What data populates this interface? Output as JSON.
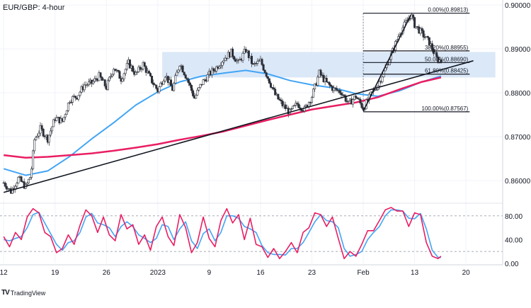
{
  "chart_data": {
    "type": "candlestick",
    "title": "EUR/GBP: 4-hour",
    "price_axis": {
      "min": 0.855,
      "max": 0.9005,
      "ticks": [
        0.86,
        0.87,
        0.88,
        0.89,
        0.9
      ],
      "tick_labels": [
        "0.86000",
        "0.87000",
        "0.88000",
        "0.89000",
        "0.90000"
      ]
    },
    "x_axis": {
      "ticks": [
        0,
        7,
        14,
        21,
        28,
        35,
        42,
        49,
        56,
        63
      ],
      "tick_labels": [
        "12",
        "19",
        "26",
        "2023",
        "9",
        "16",
        "23",
        "Feb",
        "13",
        "20"
      ],
      "range": [
        -0.5,
        68
      ]
    },
    "price_anchors": [
      [
        0,
        0.8595
      ],
      [
        1,
        0.8575
      ],
      [
        2,
        0.8605
      ],
      [
        3,
        0.8585
      ],
      [
        3.7,
        0.8612
      ],
      [
        4.2,
        0.8693
      ],
      [
        5,
        0.8718
      ],
      [
        6,
        0.8695
      ],
      [
        7,
        0.8742
      ],
      [
        8,
        0.8735
      ],
      [
        9,
        0.8785
      ],
      [
        10,
        0.8792
      ],
      [
        11,
        0.8818
      ],
      [
        12,
        0.8822
      ],
      [
        13,
        0.8838
      ],
      [
        14,
        0.8812
      ],
      [
        15,
        0.8858
      ],
      [
        16,
        0.8832
      ],
      [
        17,
        0.8868
      ],
      [
        18,
        0.8842
      ],
      [
        19,
        0.8865
      ],
      [
        20,
        0.8832
      ],
      [
        21,
        0.8805
      ],
      [
        22,
        0.8842
      ],
      [
        23,
        0.8808
      ],
      [
        24,
        0.8868
      ],
      [
        25,
        0.8832
      ],
      [
        26,
        0.8788
      ],
      [
        27,
        0.8822
      ],
      [
        28,
        0.8842
      ],
      [
        29,
        0.8858
      ],
      [
        30,
        0.8878
      ],
      [
        31,
        0.8892
      ],
      [
        32,
        0.8868
      ],
      [
        33,
        0.8898
      ],
      [
        34,
        0.8862
      ],
      [
        35,
        0.8872
      ],
      [
        36,
        0.8835
      ],
      [
        37,
        0.8795
      ],
      [
        38,
        0.8772
      ],
      [
        39,
        0.8755
      ],
      [
        40,
        0.8775
      ],
      [
        41,
        0.8762
      ],
      [
        42,
        0.8792
      ],
      [
        43,
        0.8845
      ],
      [
        44,
        0.8822
      ],
      [
        45,
        0.8808
      ],
      [
        46,
        0.8802
      ],
      [
        47,
        0.8775
      ],
      [
        48,
        0.8792
      ],
      [
        49,
        0.8765
      ],
      [
        50,
        0.8795
      ],
      [
        51,
        0.8818
      ],
      [
        52,
        0.8855
      ],
      [
        53,
        0.8895
      ],
      [
        54,
        0.8938
      ],
      [
        55,
        0.8965
      ],
      [
        55.5,
        0.8978
      ],
      [
        56,
        0.8955
      ],
      [
        57,
        0.8935
      ],
      [
        58,
        0.8915
      ],
      [
        59,
        0.8878
      ],
      [
        59.6,
        0.8872
      ]
    ],
    "ma_fast": {
      "color": "#42a5f5",
      "points": [
        [
          0,
          0.8627
        ],
        [
          3,
          0.8612
        ],
        [
          6,
          0.8622
        ],
        [
          9,
          0.8655
        ],
        [
          12,
          0.8695
        ],
        [
          15,
          0.8732
        ],
        [
          18,
          0.8772
        ],
        [
          21,
          0.8802
        ],
        [
          24,
          0.8825
        ],
        [
          27,
          0.8838
        ],
        [
          30,
          0.8845
        ],
        [
          33,
          0.8851
        ],
        [
          36,
          0.8843
        ],
        [
          39,
          0.8828
        ],
        [
          42,
          0.8818
        ],
        [
          45,
          0.8811
        ],
        [
          48,
          0.8798
        ],
        [
          51,
          0.8792
        ],
        [
          54,
          0.8805
        ],
        [
          57,
          0.8825
        ],
        [
          59.6,
          0.8838
        ]
      ]
    },
    "ma_slow": {
      "color": "#e91e63",
      "points": [
        [
          0,
          0.8658
        ],
        [
          3,
          0.8652
        ],
        [
          6,
          0.8654
        ],
        [
          9,
          0.8658
        ],
        [
          12,
          0.8662
        ],
        [
          15,
          0.8668
        ],
        [
          18,
          0.8675
        ],
        [
          21,
          0.8683
        ],
        [
          24,
          0.8693
        ],
        [
          27,
          0.8702
        ],
        [
          30,
          0.8712
        ],
        [
          33,
          0.8725
        ],
        [
          36,
          0.8738
        ],
        [
          39,
          0.875
        ],
        [
          42,
          0.8762
        ],
        [
          45,
          0.877
        ],
        [
          48,
          0.8778
        ],
        [
          51,
          0.879
        ],
        [
          54,
          0.8808
        ],
        [
          57,
          0.8825
        ],
        [
          59.6,
          0.8835
        ]
      ]
    },
    "trendlines": [
      {
        "from": [
          0,
          0.8573
        ],
        "to": [
          64,
          0.8873
        ]
      },
      {
        "from": [
          49,
          0.8758
        ],
        "to": [
          55.5,
          0.8978
        ]
      }
    ],
    "zone": {
      "x_from": 21.6,
      "x_to": 67,
      "y_from": 0.8835,
      "y_to": 0.8893,
      "color": "#dbe8f8"
    },
    "fib_retracement": {
      "x_from": 49,
      "x_to": 63.5,
      "levels": [
        {
          "label": "0.00%(0.89813)",
          "price": 0.89813
        },
        {
          "label": "38.20%(0.88955)",
          "price": 0.88955
        },
        {
          "label": "50.00%(0.88690)",
          "price": 0.8869
        },
        {
          "label": "61.80%(0.88425)",
          "price": 0.88425
        },
        {
          "label": "100.00%(0.87567)",
          "price": 0.87567
        }
      ]
    },
    "oscillator": {
      "axis": {
        "min": 0,
        "max": 100,
        "ticks": [
          0,
          40,
          80
        ],
        "tick_labels": [
          "0.00",
          "40.00",
          "80.00"
        ],
        "guides": [
          20,
          80
        ]
      },
      "k_color": "#e91e63",
      "d_color": "#42a5f5",
      "k_points": [
        [
          0,
          45
        ],
        [
          0.8,
          28
        ],
        [
          1.6,
          52
        ],
        [
          2.4,
          40
        ],
        [
          3.2,
          78
        ],
        [
          4,
          92
        ],
        [
          4.8,
          85
        ],
        [
          5.6,
          52
        ],
        [
          6.4,
          45
        ],
        [
          7.2,
          18
        ],
        [
          8,
          25
        ],
        [
          8.8,
          48
        ],
        [
          9.6,
          32
        ],
        [
          10.4,
          64
        ],
        [
          11.2,
          90
        ],
        [
          12,
          80
        ],
        [
          12.8,
          52
        ],
        [
          13.6,
          78
        ],
        [
          14.4,
          48
        ],
        [
          15.2,
          38
        ],
        [
          16,
          82
        ],
        [
          16.8,
          58
        ],
        [
          17.6,
          65
        ],
        [
          18.4,
          32
        ],
        [
          19.2,
          48
        ],
        [
          20,
          22
        ],
        [
          20.8,
          62
        ],
        [
          21.6,
          78
        ],
        [
          22.4,
          45
        ],
        [
          23.2,
          30
        ],
        [
          24,
          82
        ],
        [
          24.8,
          60
        ],
        [
          25.6,
          18
        ],
        [
          26.4,
          35
        ],
        [
          27.2,
          78
        ],
        [
          28,
          42
        ],
        [
          28.8,
          28
        ],
        [
          29.6,
          72
        ],
        [
          30.4,
          92
        ],
        [
          31.2,
          68
        ],
        [
          32,
          82
        ],
        [
          32.8,
          40
        ],
        [
          33.6,
          76
        ],
        [
          34.4,
          32
        ],
        [
          35.2,
          28
        ],
        [
          36,
          10
        ],
        [
          36.8,
          25
        ],
        [
          37.6,
          8
        ],
        [
          38.4,
          20
        ],
        [
          39.2,
          35
        ],
        [
          40,
          18
        ],
        [
          40.8,
          52
        ],
        [
          41.6,
          60
        ],
        [
          42.4,
          85
        ],
        [
          43.2,
          82
        ],
        [
          44,
          62
        ],
        [
          44.8,
          78
        ],
        [
          45.6,
          42
        ],
        [
          46.4,
          8
        ],
        [
          47.2,
          20
        ],
        [
          48,
          12
        ],
        [
          48.8,
          32
        ],
        [
          49.6,
          55
        ],
        [
          50.4,
          55
        ],
        [
          51.2,
          72
        ],
        [
          52,
          90
        ],
        [
          52.8,
          94
        ],
        [
          53.6,
          88
        ],
        [
          54.4,
          88
        ],
        [
          55.2,
          62
        ],
        [
          56,
          85
        ],
        [
          56.8,
          82
        ],
        [
          57.6,
          35
        ],
        [
          58.4,
          12
        ],
        [
          59.2,
          8
        ],
        [
          59.6,
          12
        ]
      ],
      "d_points": [
        [
          0,
          40
        ],
        [
          0.8,
          38
        ],
        [
          1.6,
          42
        ],
        [
          2.4,
          45
        ],
        [
          3.2,
          60
        ],
        [
          4,
          82
        ],
        [
          4.8,
          86
        ],
        [
          5.6,
          68
        ],
        [
          6.4,
          50
        ],
        [
          7.2,
          32
        ],
        [
          8,
          22
        ],
        [
          8.8,
          35
        ],
        [
          9.6,
          38
        ],
        [
          10.4,
          52
        ],
        [
          11.2,
          78
        ],
        [
          12,
          84
        ],
        [
          12.8,
          68
        ],
        [
          13.6,
          65
        ],
        [
          14.4,
          60
        ],
        [
          15.2,
          45
        ],
        [
          16,
          62
        ],
        [
          16.8,
          70
        ],
        [
          17.6,
          62
        ],
        [
          18.4,
          48
        ],
        [
          19.2,
          42
        ],
        [
          20,
          35
        ],
        [
          20.8,
          42
        ],
        [
          21.6,
          65
        ],
        [
          22.4,
          62
        ],
        [
          23.2,
          40
        ],
        [
          24,
          58
        ],
        [
          24.8,
          70
        ],
        [
          25.6,
          38
        ],
        [
          26.4,
          25
        ],
        [
          27.2,
          50
        ],
        [
          28,
          58
        ],
        [
          28.8,
          38
        ],
        [
          29.6,
          52
        ],
        [
          30.4,
          80
        ],
        [
          31.2,
          80
        ],
        [
          32,
          76
        ],
        [
          32.8,
          62
        ],
        [
          33.6,
          58
        ],
        [
          34.4,
          52
        ],
        [
          35.2,
          30
        ],
        [
          36,
          18
        ],
        [
          36.8,
          15
        ],
        [
          37.6,
          15
        ],
        [
          38.4,
          14
        ],
        [
          39.2,
          25
        ],
        [
          40,
          25
        ],
        [
          40.8,
          35
        ],
        [
          41.6,
          52
        ],
        [
          42.4,
          70
        ],
        [
          43.2,
          82
        ],
        [
          44,
          72
        ],
        [
          44.8,
          70
        ],
        [
          45.6,
          60
        ],
        [
          46.4,
          25
        ],
        [
          47.2,
          12
        ],
        [
          48,
          15
        ],
        [
          48.8,
          20
        ],
        [
          49.6,
          40
        ],
        [
          50.4,
          52
        ],
        [
          51.2,
          62
        ],
        [
          52,
          80
        ],
        [
          52.8,
          90
        ],
        [
          53.6,
          90
        ],
        [
          54.4,
          88
        ],
        [
          55.2,
          76
        ],
        [
          56,
          75
        ],
        [
          56.8,
          84
        ],
        [
          57.6,
          58
        ],
        [
          58.4,
          22
        ],
        [
          59.2,
          10
        ],
        [
          59.6,
          10
        ]
      ]
    }
  },
  "footer": {
    "brand": "TradingView",
    "logo_text": "TV"
  }
}
